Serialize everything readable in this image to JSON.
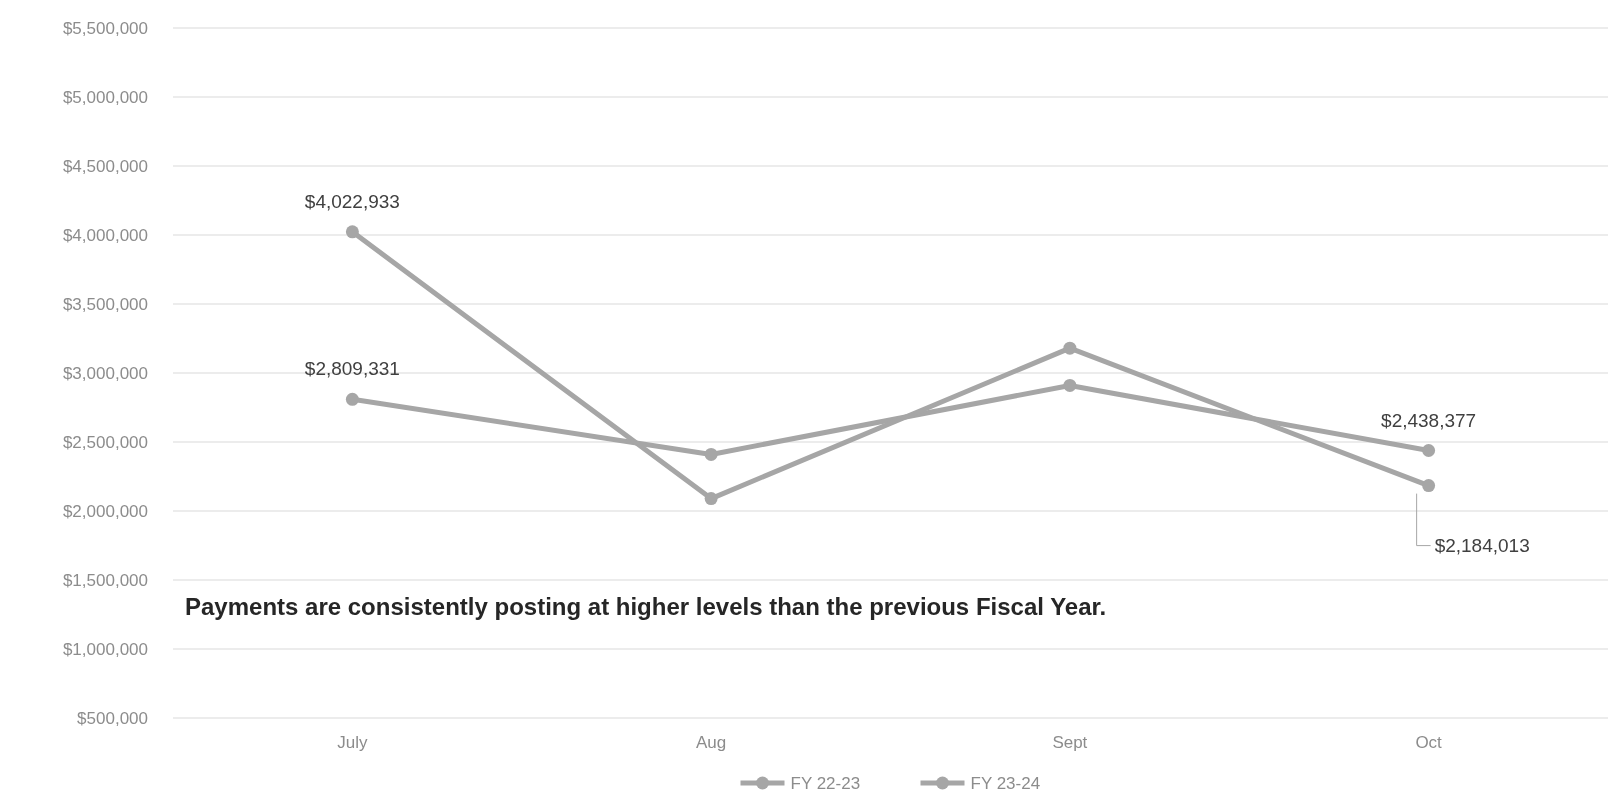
{
  "chart_data": {
    "type": "line",
    "categories": [
      "July",
      "Aug",
      "Sept",
      "Oct"
    ],
    "series": [
      {
        "name": "FY 22-23",
        "color": "#a6a6a6",
        "values": [
          2809331,
          2410000,
          2910000,
          2438377
        ],
        "value_labels": [
          "$2,809,331",
          null,
          null,
          "$2,438,377"
        ]
      },
      {
        "name": "FY 23-24",
        "color": "#a6a6a6",
        "values": [
          4022933,
          2090000,
          3180000,
          2184013
        ],
        "value_labels": [
          "$4,022,933",
          null,
          null,
          "$2,184,013"
        ]
      }
    ],
    "ylim": [
      500000,
      5500000
    ],
    "yticks": [
      {
        "value": 500000,
        "label": "$500,000"
      },
      {
        "value": 1000000,
        "label": "$1,000,000"
      },
      {
        "value": 1500000,
        "label": "$1,500,000"
      },
      {
        "value": 2000000,
        "label": "$2,000,000"
      },
      {
        "value": 2500000,
        "label": "$2,500,000"
      },
      {
        "value": 3000000,
        "label": "$3,000,000"
      },
      {
        "value": 3500000,
        "label": "$3,500,000"
      },
      {
        "value": 4000000,
        "label": "$4,000,000"
      },
      {
        "value": 4500000,
        "label": "$4,500,000"
      },
      {
        "value": 5000000,
        "label": "$5,000,000"
      },
      {
        "value": 5500000,
        "label": "$5,500,000"
      }
    ],
    "grid": "y",
    "legend": "bottom",
    "marker": "circle",
    "line_style": "solid",
    "annotations": [
      "Payments are consistently posting at higher levels than the previous Fiscal Year."
    ]
  }
}
